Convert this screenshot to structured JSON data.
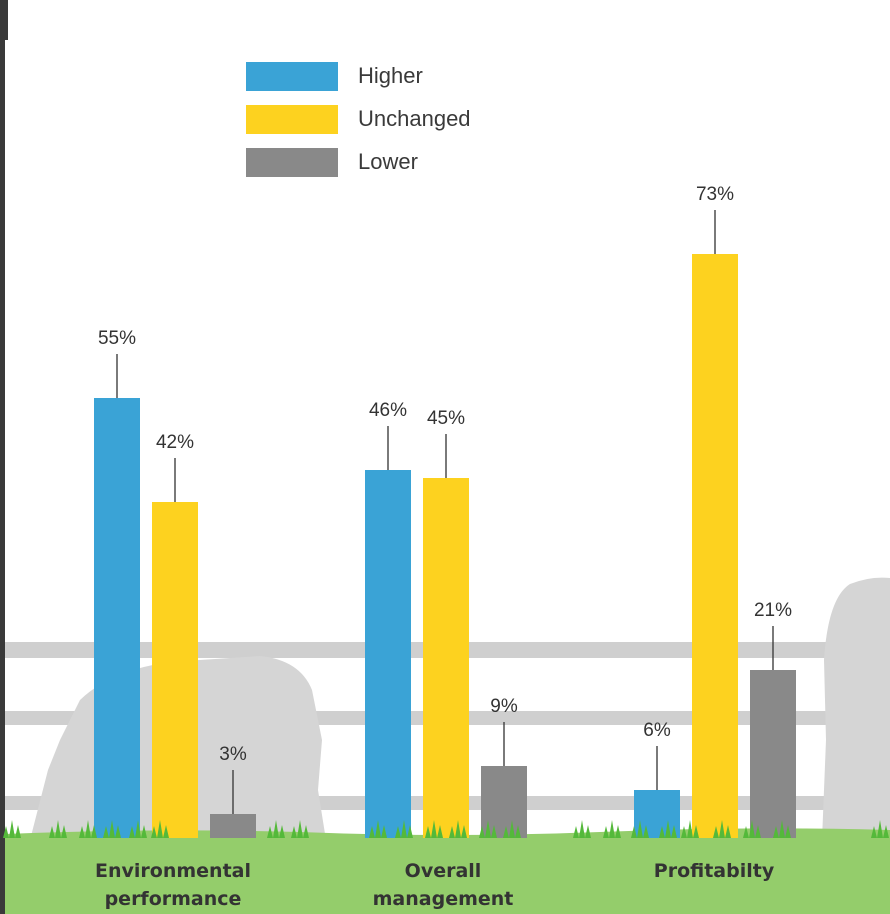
{
  "colors": {
    "higher": "#3aa3d6",
    "unchanged": "#fdd21f",
    "lower": "#898989",
    "grass": "#94cd6b",
    "grass_tuft": "#54b93a",
    "fence": "#cfcfcf",
    "cow": "#d5d5d5",
    "label_text": "#333333"
  },
  "legend": [
    {
      "name": "Higher",
      "color": "#3aa3d6"
    },
    {
      "name": "Unchanged",
      "color": "#fdd21f"
    },
    {
      "name": "Lower",
      "color": "#898989"
    }
  ],
  "chart_data": {
    "type": "bar",
    "title": "",
    "xlabel": "",
    "ylabel": "",
    "categories": [
      {
        "line1": "Environmental",
        "line2": "performance"
      },
      {
        "line1": "Overall",
        "line2": "management"
      },
      {
        "line1": "Profitabilty",
        "line2": ""
      }
    ],
    "series": [
      {
        "name": "Higher",
        "values": [
          55,
          46,
          6
        ],
        "labels": [
          "55%",
          "46%",
          "6%"
        ]
      },
      {
        "name": "Unchanged",
        "values": [
          42,
          45,
          73
        ],
        "labels": [
          "42%",
          "45%",
          "73%"
        ]
      },
      {
        "name": "Lower",
        "values": [
          3,
          9,
          21
        ],
        "labels": [
          "3%",
          "9%",
          "21%"
        ]
      }
    ],
    "ylim": [
      0,
      80
    ],
    "grid": false,
    "legend_position": "top-left",
    "value_label_suffix": "%"
  }
}
